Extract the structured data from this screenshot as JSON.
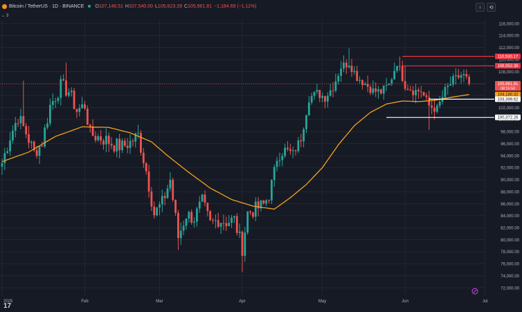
{
  "header": {
    "symbol": "Bitcoin / TetherUS · 1D · BINANCE",
    "open_label": "O",
    "open": "107,146.51",
    "high_label": "H",
    "high": "107,540.00",
    "low_label": "L",
    "low": "105,623.39",
    "close_label": "C",
    "close": "105,961.81",
    "change": "−1,184.69 (−1.11%)"
  },
  "indicators": {
    "count": "3"
  },
  "toolbar": {
    "down_icon": "arrow-down-icon",
    "reset_icon": "reset-icon"
  },
  "price_badges": {
    "last_price": "105,961.81",
    "countdown": "08:15:50",
    "ma_value": "104,180.32",
    "level_110530": "110,530.17",
    "level_108952": "108,952.38",
    "level_103399": "103,399.62",
    "level_100372": "100,372.26"
  },
  "colors": {
    "up": "#26a69a",
    "down": "#ef5350",
    "ma": "#f7a21b",
    "bg": "#161a25",
    "grid": "#232733",
    "level": "#ef3340"
  },
  "chart_data": {
    "type": "candlestick",
    "title": "Bitcoin / TetherUS · 1D · BINANCE",
    "y_axis_ticks": [
      "116,000.00",
      "114,000.00",
      "112,000.00",
      "110,000.00",
      "108,000.00",
      "106,000.00",
      "104,000.00",
      "102,000.00",
      "100,000.00",
      "98,000.00",
      "96,000.00",
      "94,000.00",
      "92,000.00",
      "90,000.00",
      "88,000.00",
      "86,000.00",
      "84,000.00",
      "82,000.00",
      "80,000.00",
      "78,000.00",
      "76,000.00",
      "74,000.00",
      "72,000.00"
    ],
    "x_axis_ticks": [
      "2025",
      "Feb",
      "Mar",
      "Apr",
      "May",
      "Jun",
      "Jul"
    ],
    "ylim": [
      71000,
      117000
    ],
    "series_anchors": {
      "close": [
        [
          0,
          92800
        ],
        [
          3,
          97200
        ],
        [
          6,
          100500
        ],
        [
          9,
          97800
        ],
        [
          12,
          94500
        ],
        [
          15,
          96200
        ],
        [
          18,
          102300
        ],
        [
          22,
          105600
        ],
        [
          25,
          104700
        ],
        [
          28,
          101500
        ],
        [
          31,
          102400
        ],
        [
          33,
          97600
        ],
        [
          36,
          97100
        ],
        [
          39,
          96600
        ],
        [
          42,
          95800
        ],
        [
          45,
          95500
        ],
        [
          48,
          96200
        ],
        [
          51,
          97400
        ],
        [
          54,
          91500
        ],
        [
          57,
          84300
        ],
        [
          60,
          86100
        ],
        [
          63,
          90000
        ],
        [
          66,
          80400
        ],
        [
          69,
          84200
        ],
        [
          72,
          83600
        ],
        [
          75,
          86300
        ],
        [
          78,
          82600
        ],
        [
          81,
          83400
        ],
        [
          84,
          83000
        ],
        [
          87,
          83300
        ],
        [
          90,
          78600
        ],
        [
          92,
          84500
        ],
        [
          95,
          85100
        ],
        [
          98,
          85800
        ],
        [
          100,
          87500
        ],
        [
          103,
          93500
        ],
        [
          106,
          95000
        ],
        [
          109,
          94300
        ],
        [
          112,
          96900
        ],
        [
          115,
          103600
        ],
        [
          118,
          104400
        ],
        [
          121,
          103700
        ],
        [
          124,
          105500
        ],
        [
          127,
          108800
        ],
        [
          130,
          109500
        ],
        [
          133,
          107100
        ],
        [
          136,
          106000
        ],
        [
          139,
          104800
        ],
        [
          142,
          104600
        ],
        [
          145,
          105800
        ],
        [
          148,
          109600
        ],
        [
          151,
          105800
        ],
        [
          154,
          104800
        ],
        [
          157,
          104800
        ],
        [
          160,
          102300
        ],
        [
          163,
          101700
        ],
        [
          166,
          104800
        ],
        [
          169,
          106500
        ],
        [
          172,
          107400
        ],
        [
          174,
          107146
        ],
        [
          175,
          105962
        ]
      ],
      "wick_extremes": {
        "high": [
          [
            8,
            106500
          ],
          [
            24,
            109500
          ],
          [
            130,
            111900
          ],
          [
            149,
            110500
          ],
          [
            151,
            108900
          ]
        ],
        "low": [
          [
            66,
            78300
          ],
          [
            90,
            74600
          ],
          [
            160,
            98300
          ]
        ]
      },
      "last_price": 105961.81
    },
    "series": [
      {
        "name": "MA",
        "values": [
          [
            0,
            93000
          ],
          [
            10,
            94600
          ],
          [
            20,
            97200
          ],
          [
            30,
            98800
          ],
          [
            40,
            98700
          ],
          [
            48,
            97800
          ],
          [
            56,
            96300
          ],
          [
            62,
            94000
          ],
          [
            70,
            91200
          ],
          [
            78,
            88600
          ],
          [
            86,
            86700
          ],
          [
            94,
            85600
          ],
          [
            102,
            85100
          ],
          [
            108,
            87000
          ],
          [
            114,
            89200
          ],
          [
            120,
            92000
          ],
          [
            126,
            95800
          ],
          [
            132,
            99000
          ],
          [
            138,
            101200
          ],
          [
            144,
            102600
          ],
          [
            150,
            103100
          ],
          [
            156,
            103000
          ],
          [
            162,
            103200
          ],
          [
            168,
            103700
          ],
          [
            175,
            104180
          ]
        ]
      }
    ],
    "levels": [
      {
        "value": 110530.17,
        "color": "#ef3340",
        "from": 150
      },
      {
        "value": 108952.38,
        "color": "#ef3340",
        "from": 150
      },
      {
        "value": 103399.62,
        "color": "#ffffff",
        "from": 160
      },
      {
        "value": 100372.26,
        "color": "#ffffff",
        "from": 144
      }
    ],
    "grid": true
  }
}
